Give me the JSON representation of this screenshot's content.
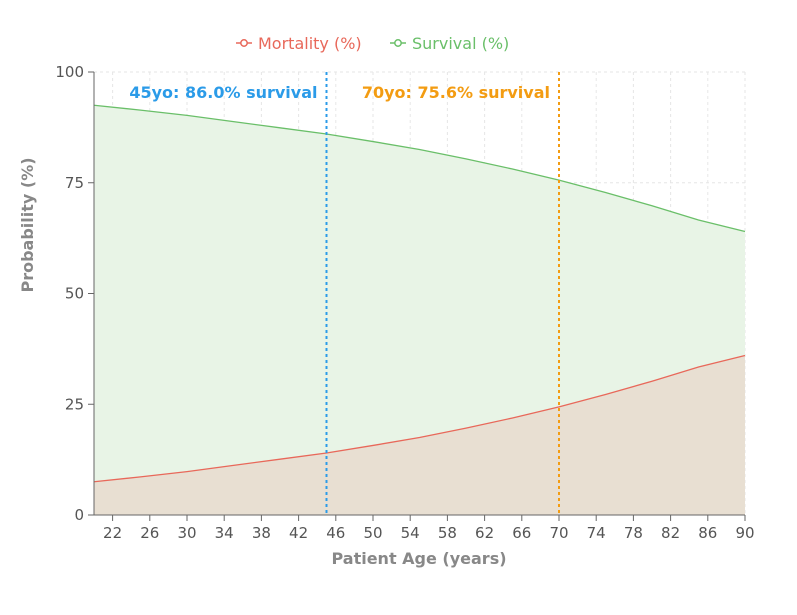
{
  "chart_data": {
    "type": "area",
    "xlabel": "Patient Age (years)",
    "ylabel": "Probability (%)",
    "xlim": [
      20,
      90
    ],
    "ylim": [
      0,
      100
    ],
    "xticks": [
      22,
      26,
      30,
      34,
      38,
      42,
      46,
      50,
      54,
      58,
      62,
      66,
      70,
      74,
      78,
      82,
      86,
      90
    ],
    "yticks": [
      0,
      25,
      50,
      75,
      100
    ],
    "grid": true,
    "legend_position": "top-center",
    "x": [
      20,
      25,
      30,
      35,
      40,
      45,
      50,
      55,
      60,
      65,
      70,
      75,
      80,
      85,
      90
    ],
    "series": [
      {
        "name": "Mortality (%)",
        "color": "#e8685a",
        "fill": "#e8dfd2",
        "values": [
          7.5,
          8.6,
          9.8,
          11.2,
          12.6,
          14.0,
          15.7,
          17.5,
          19.6,
          21.9,
          24.4,
          27.2,
          30.2,
          33.4,
          36.0
        ]
      },
      {
        "name": "Survival (%)",
        "color": "#6abf69",
        "fill": "#e8f4e6",
        "values": [
          92.5,
          91.4,
          90.2,
          88.8,
          87.4,
          86.0,
          84.3,
          82.5,
          80.4,
          78.1,
          75.6,
          72.8,
          69.8,
          66.6,
          64.0
        ]
      }
    ],
    "annotations": [
      {
        "x": 45,
        "label": "45yo: 86.0% survival",
        "color": "#2b9be8"
      },
      {
        "x": 70,
        "label": "70yo: 75.6% survival",
        "color": "#f39c12"
      }
    ]
  }
}
